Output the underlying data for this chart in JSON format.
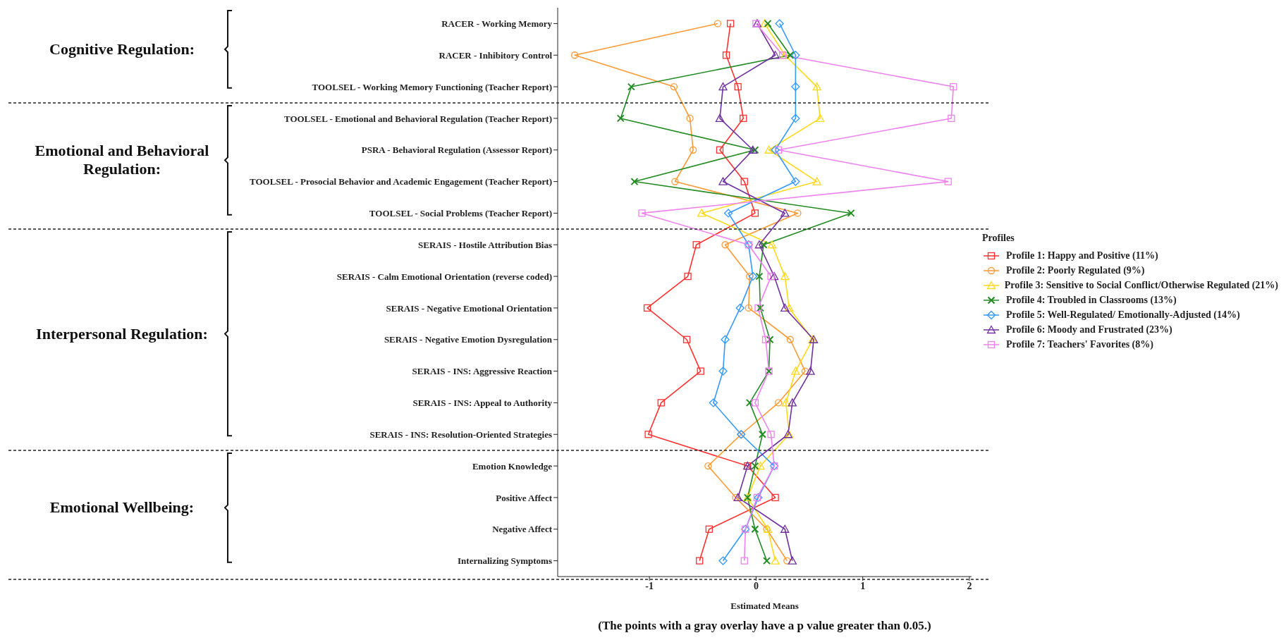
{
  "chart_data": {
    "type": "line",
    "orientation": "horizontal",
    "xlabel": "Estimated Means",
    "legend_title": "Profiles",
    "legend": "right",
    "categories": [
      "RACER - Working Memory",
      "RACER - Inhibitory Control",
      "TOOLSEL - Working Memory Functioning (Teacher Report)",
      "TOOLSEL - Emotional and Behavioral Regulation (Teacher Report)",
      "PSRA - Behavioral Regulation (Assessor Report)",
      "TOOLSEL - Prosocial Behavior and Academic Engagement (Teacher Report)",
      "TOOLSEL - Social Problems (Teacher Report)",
      "SERAIS - Hostile Attribution Bias",
      "SERAIS - Calm Emotional Orientation (reverse coded)",
      "SERAIS - Negative Emotional Orientation",
      "SERAIS - Negative Emotion Dysregulation",
      "SERAIS - INS: Aggressive Reaction",
      "SERAIS - INS: Appeal to Authority",
      "SERAIS - INS: Resolution-Oriented Strategies",
      "Emotion Knowledge",
      "Positive Affect",
      "Negative Affect",
      "Internalizing Symptoms"
    ],
    "xlim": [
      -1.86,
      2.02
    ],
    "xticks": [
      -1,
      0,
      1,
      2
    ],
    "series": [
      {
        "name": "Profile 1: Happy and Positive (11%)",
        "color": "#ff3030",
        "marker": "square",
        "values": [
          -0.24,
          -0.28,
          -0.17,
          -0.12,
          -0.34,
          -0.11,
          -0.01,
          -0.56,
          -0.64,
          -1.02,
          -0.65,
          -0.52,
          -0.89,
          -1.01,
          -0.08,
          0.18,
          -0.44,
          -0.53
        ]
      },
      {
        "name": "Profile 2: Poorly Regulated (9%)",
        "color": "#ff9933",
        "marker": "circle",
        "values": [
          -0.36,
          -1.7,
          -0.77,
          -0.62,
          -0.59,
          -0.76,
          0.39,
          -0.29,
          -0.06,
          -0.07,
          0.32,
          0.46,
          0.21,
          -0.14,
          -0.45,
          -0.19,
          0.1,
          0.29
        ]
      },
      {
        "name": "Profile 3: Sensitive to Social Conflict/Otherwise Regulated (21%)",
        "color": "#ffd91a",
        "marker": "triangle",
        "values": [
          0.08,
          0.27,
          0.57,
          0.6,
          0.12,
          0.57,
          -0.51,
          0.15,
          0.27,
          0.31,
          0.53,
          0.37,
          0.28,
          0.31,
          0.04,
          -0.08,
          0.11,
          0.18
        ]
      },
      {
        "name": "Profile 4: Troubled in Classrooms (13%)",
        "color": "#228b22",
        "marker": "cross",
        "values": [
          0.11,
          0.32,
          -1.17,
          -1.27,
          -0.01,
          -1.14,
          0.89,
          0.07,
          0.03,
          0.04,
          0.13,
          0.12,
          -0.06,
          0.06,
          -0.01,
          -0.08,
          -0.01,
          0.1
        ]
      },
      {
        "name": "Profile 5: Well-Regulated/ Emotionally-Adjusted (14%)",
        "color": "#3399ff",
        "marker": "diamond",
        "values": [
          0.22,
          0.37,
          0.37,
          0.37,
          0.18,
          0.37,
          -0.26,
          -0.07,
          -0.03,
          -0.15,
          -0.29,
          -0.31,
          -0.4,
          -0.14,
          0.17,
          0.02,
          -0.1,
          -0.31
        ]
      },
      {
        "name": "Profile 6: Moody and Frustrated (23%)",
        "color": "#7030a0",
        "marker": "triangle",
        "values": [
          0.01,
          0.18,
          -0.31,
          -0.34,
          -0.03,
          -0.31,
          0.27,
          0.03,
          0.17,
          0.27,
          0.54,
          0.51,
          0.34,
          0.3,
          -0.08,
          -0.17,
          0.27,
          0.34
        ]
      },
      {
        "name": "Profile 7: Teachers' Favorites (8%)",
        "color": "#ee82ee",
        "marker": "square",
        "values": [
          0.0,
          0.25,
          1.85,
          1.83,
          0.21,
          1.8,
          -1.07,
          -0.07,
          0.14,
          0.02,
          0.09,
          0.12,
          -0.01,
          0.14,
          0.17,
          0.01,
          -0.1,
          -0.11
        ]
      }
    ],
    "annotations": [
      "Cognitive Regulation:",
      "Emotional and Behavioral Regulation:",
      "Interpersonal Regulation:",
      "Emotional Wellbeing:",
      "(The points with a gray overlay have a p value greater than 0.05.)"
    ]
  }
}
